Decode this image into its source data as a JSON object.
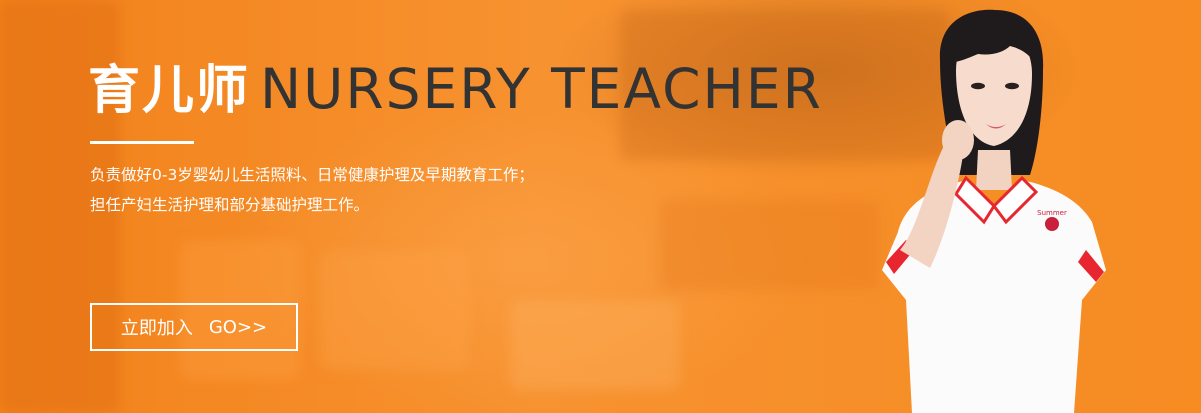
{
  "banner": {
    "title_cn": "育儿师",
    "title_en": "NURSERY TEACHER",
    "description": [
      "负责做好0-3岁婴幼儿生活照料、日常健康护理及早期教育工作；",
      "担任产妇生活护理和部分基础护理工作。"
    ],
    "cta_label": "立即加入",
    "cta_go": "GO>>",
    "shirt_logo_text": "Summer"
  },
  "colors": {
    "background": "#f68a1f",
    "title_en": "#333333",
    "text": "#ffffff",
    "shirt_trim": "#e8262f"
  }
}
